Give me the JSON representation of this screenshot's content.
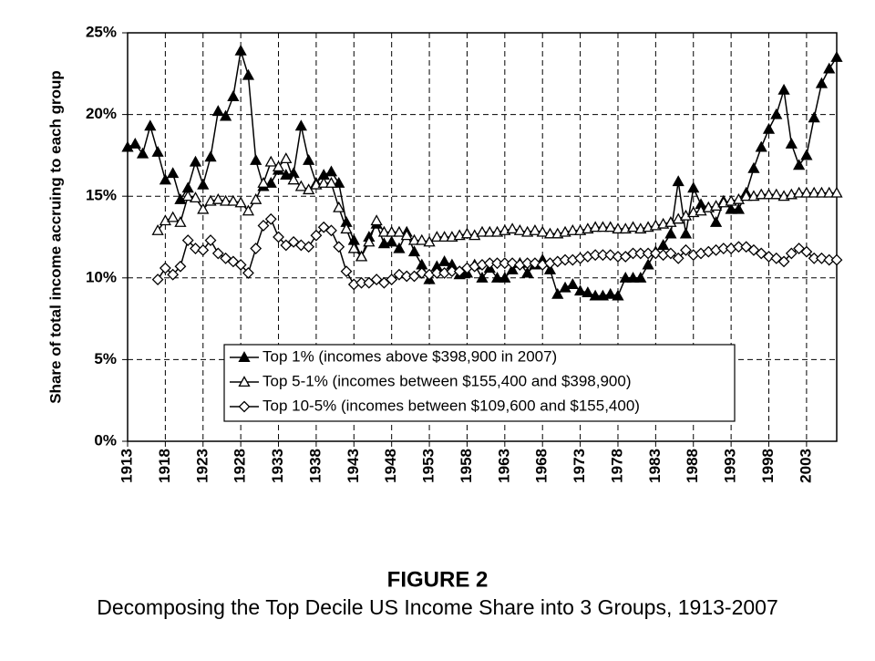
{
  "chart_data": {
    "type": "line",
    "title": "FIGURE 2",
    "subtitle": "Decomposing the Top Decile US Income Share into 3 Groups, 1913-2007",
    "y_label": "Share of total income accruing to each group",
    "x": [
      1913,
      1914,
      1915,
      1916,
      1917,
      1918,
      1919,
      1920,
      1921,
      1922,
      1923,
      1924,
      1925,
      1926,
      1927,
      1928,
      1929,
      1930,
      1931,
      1932,
      1933,
      1934,
      1935,
      1936,
      1937,
      1938,
      1939,
      1940,
      1941,
      1942,
      1943,
      1944,
      1945,
      1946,
      1947,
      1948,
      1949,
      1950,
      1951,
      1952,
      1953,
      1954,
      1955,
      1956,
      1957,
      1958,
      1959,
      1960,
      1961,
      1962,
      1963,
      1964,
      1965,
      1966,
      1967,
      1968,
      1969,
      1970,
      1971,
      1972,
      1973,
      1974,
      1975,
      1976,
      1977,
      1978,
      1979,
      1980,
      1981,
      1982,
      1983,
      1984,
      1985,
      1986,
      1987,
      1988,
      1989,
      1990,
      1991,
      1992,
      1993,
      1994,
      1995,
      1996,
      1997,
      1998,
      1999,
      2000,
      2001,
      2002,
      2003,
      2004,
      2005,
      2006,
      2007
    ],
    "series": [
      {
        "name": "Top 1% (incomes above $398,900 in 2007)",
        "color": "#000000",
        "marker": "triangle-filled",
        "values": [
          18.0,
          18.2,
          17.6,
          19.3,
          17.7,
          16.0,
          16.4,
          14.8,
          15.5,
          17.1,
          15.7,
          17.4,
          20.2,
          19.9,
          21.1,
          23.9,
          22.4,
          17.2,
          15.6,
          15.8,
          16.6,
          16.3,
          16.4,
          19.3,
          17.2,
          15.8,
          16.3,
          16.5,
          15.8,
          13.4,
          12.3,
          11.3,
          12.5,
          13.3,
          12.1,
          12.2,
          11.8,
          12.8,
          11.6,
          10.8,
          9.9,
          10.7,
          11.0,
          10.8,
          10.2,
          10.3,
          10.8,
          10.0,
          10.6,
          10.0,
          10.0,
          10.5,
          10.9,
          10.3,
          10.8,
          11.1,
          10.5,
          9.0,
          9.4,
          9.6,
          9.2,
          9.1,
          8.9,
          8.9,
          9.0,
          8.9,
          10.0,
          10.0,
          10.0,
          10.8,
          11.6,
          12.0,
          12.7,
          15.9,
          12.7,
          15.5,
          14.5,
          14.3,
          13.4,
          14.7,
          14.2,
          14.2,
          15.2,
          16.7,
          18.0,
          19.1,
          20.0,
          21.5,
          18.2,
          16.9,
          17.5,
          19.8,
          21.9,
          22.8,
          23.5
        ]
      },
      {
        "name": "Top 5-1% (incomes between $155,400 and $398,900)",
        "color": "#000000",
        "marker": "triangle-open",
        "values": [
          null,
          null,
          null,
          null,
          12.9,
          13.5,
          13.7,
          13.4,
          15.0,
          14.9,
          14.2,
          14.7,
          14.8,
          14.7,
          14.7,
          14.6,
          14.1,
          14.8,
          15.8,
          17.1,
          16.8,
          17.3,
          16.0,
          15.6,
          15.4,
          15.7,
          15.8,
          15.8,
          14.3,
          13.0,
          11.8,
          11.3,
          12.2,
          13.5,
          12.8,
          12.8,
          12.8,
          12.6,
          12.3,
          12.3,
          12.2,
          12.5,
          12.5,
          12.5,
          12.6,
          12.7,
          12.6,
          12.8,
          12.8,
          12.8,
          12.9,
          13.0,
          12.9,
          12.8,
          12.9,
          12.8,
          12.7,
          12.7,
          12.8,
          12.9,
          12.9,
          13.0,
          13.1,
          13.1,
          13.1,
          13.0,
          13.0,
          13.1,
          13.0,
          13.1,
          13.2,
          13.3,
          13.4,
          13.6,
          13.8,
          14.0,
          14.1,
          14.3,
          14.4,
          14.6,
          14.7,
          14.8,
          15.0,
          15.0,
          15.1,
          15.1,
          15.1,
          15.0,
          15.1,
          15.2,
          15.2,
          15.2,
          15.2,
          15.2,
          15.2
        ]
      },
      {
        "name": "Top 10-5% (incomes between $109,600 and $155,400)",
        "color": "#000000",
        "marker": "diamond-open",
        "values": [
          null,
          null,
          null,
          null,
          9.9,
          10.6,
          10.2,
          10.7,
          12.3,
          11.8,
          11.7,
          12.3,
          11.5,
          11.2,
          11.0,
          10.8,
          10.3,
          11.8,
          13.2,
          13.6,
          12.5,
          12.0,
          12.2,
          12.0,
          11.9,
          12.6,
          13.1,
          12.9,
          11.9,
          10.4,
          9.6,
          9.7,
          9.7,
          9.9,
          9.7,
          9.9,
          10.2,
          10.1,
          10.1,
          10.3,
          10.2,
          10.3,
          10.3,
          10.4,
          10.4,
          10.6,
          10.7,
          10.8,
          10.9,
          10.9,
          10.9,
          10.9,
          10.8,
          10.9,
          10.9,
          10.8,
          10.9,
          11.0,
          11.1,
          11.1,
          11.2,
          11.3,
          11.4,
          11.4,
          11.4,
          11.3,
          11.3,
          11.5,
          11.5,
          11.5,
          11.5,
          11.4,
          11.5,
          11.2,
          11.7,
          11.4,
          11.5,
          11.6,
          11.7,
          11.8,
          11.8,
          11.9,
          11.9,
          11.7,
          11.5,
          11.3,
          11.2,
          11.0,
          11.5,
          11.8,
          11.6,
          11.2,
          11.2,
          11.1,
          11.1
        ]
      }
    ],
    "xlim": [
      1913,
      2007
    ],
    "xticks": [
      1913,
      1918,
      1923,
      1928,
      1933,
      1938,
      1943,
      1948,
      1953,
      1958,
      1963,
      1968,
      1973,
      1978,
      1983,
      1988,
      1993,
      1998,
      2003
    ],
    "ylim": [
      0,
      25
    ],
    "yticks": [
      {
        "value": 0,
        "label": "0%"
      },
      {
        "value": 5,
        "label": "5%"
      },
      {
        "value": 10,
        "label": "10%"
      },
      {
        "value": 15,
        "label": "15%"
      },
      {
        "value": 20,
        "label": "20%"
      },
      {
        "value": 25,
        "label": "25%"
      }
    ],
    "grid": true,
    "legend": "lower center"
  }
}
